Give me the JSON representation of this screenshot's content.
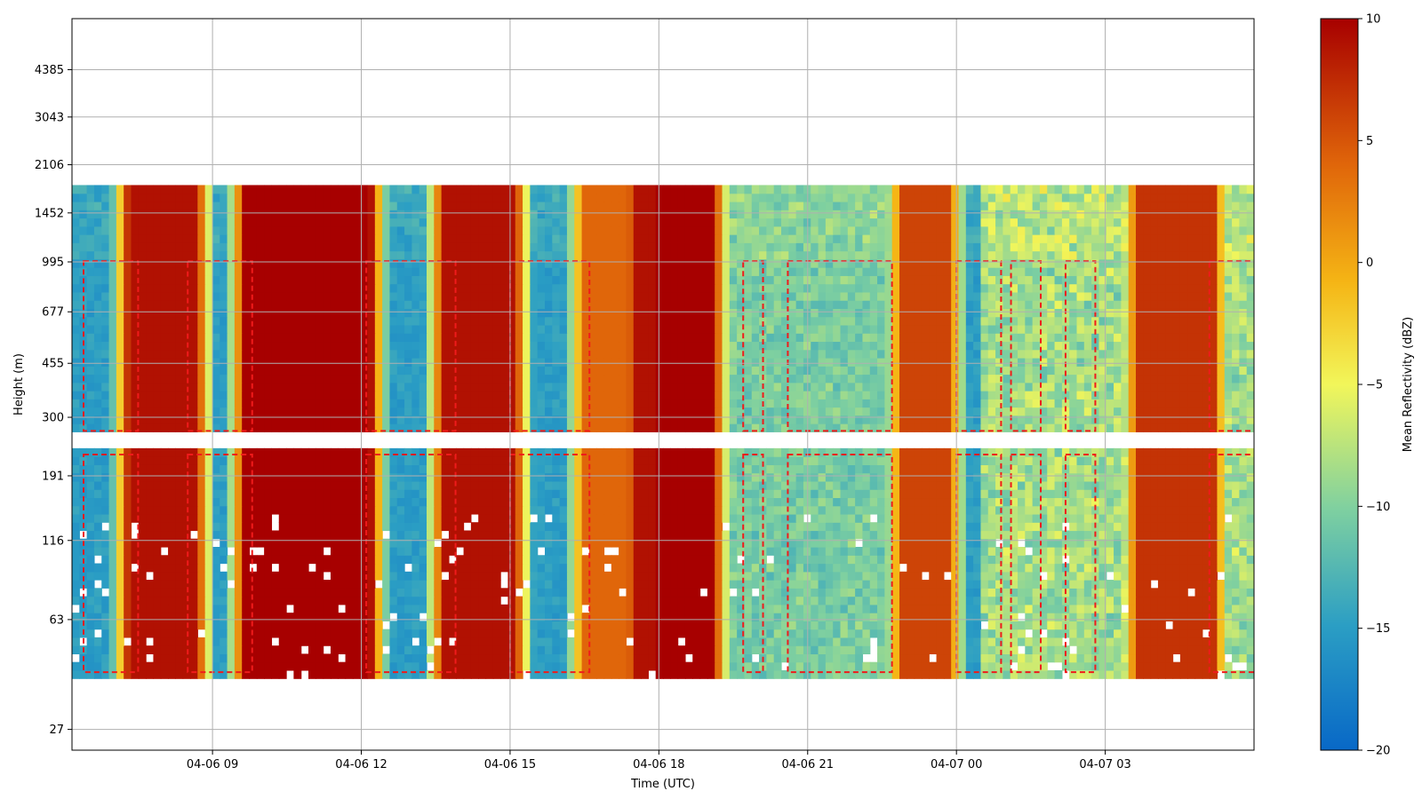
{
  "chart_data": [
    {
      "type": "heatmap",
      "title": "",
      "xlabel": "Time (UTC)",
      "ylabel": "Height (m)",
      "x_ticks": [
        "04-06 09",
        "04-06 12",
        "04-06 15",
        "04-06 18",
        "04-06 21",
        "04-07 00",
        "04-07 03"
      ],
      "x_range": [
        "04-06 06:10",
        "04-07 06:00"
      ],
      "y_scale": "log",
      "y_ticks": [
        "27",
        "63",
        "116",
        "191",
        "300",
        "455",
        "677",
        "995",
        "1452",
        "2106",
        "3043",
        "4385"
      ],
      "y_range": [
        23,
        6500
      ],
      "grid": true,
      "data_extent": {
        "height_min": 40,
        "height_max": 1800
      },
      "gap_height_band": [
        230,
        265
      ],
      "colormap": [
        "#0868c7",
        "#2b9ec4",
        "#7fd0a0",
        "#f2f65a",
        "#f5b515",
        "#e0660a",
        "#a70000"
      ],
      "contour": {
        "level_dbz": -15,
        "color": "#ef1b1b",
        "style": "dashed"
      },
      "strong_echo_periods": [
        {
          "start": "04-06 07:40",
          "end": "04-06 08:20",
          "dbz": 9
        },
        {
          "start": "04-06 10:00",
          "end": "04-06 11:50",
          "dbz": 10
        },
        {
          "start": "04-06 14:00",
          "end": "04-06 14:45",
          "dbz": 9
        },
        {
          "start": "04-06 16:50",
          "end": "04-06 17:30",
          "dbz": 4
        },
        {
          "start": "04-06 17:50",
          "end": "04-06 18:20",
          "dbz": 9
        },
        {
          "start": "04-06 18:20",
          "end": "04-06 18:45",
          "dbz": 10
        },
        {
          "start": "04-06 23:15",
          "end": "04-06 23:30",
          "dbz": 6
        },
        {
          "start": "04-07 04:00",
          "end": "04-07 04:50",
          "dbz": 7
        }
      ]
    },
    {
      "type": "colorbar",
      "label": "Mean Reflectivity (dBZ)",
      "range": [
        -20,
        10
      ],
      "ticks": [
        "10",
        "5",
        "0",
        "−5",
        "−10",
        "−15",
        "−20"
      ]
    }
  ]
}
